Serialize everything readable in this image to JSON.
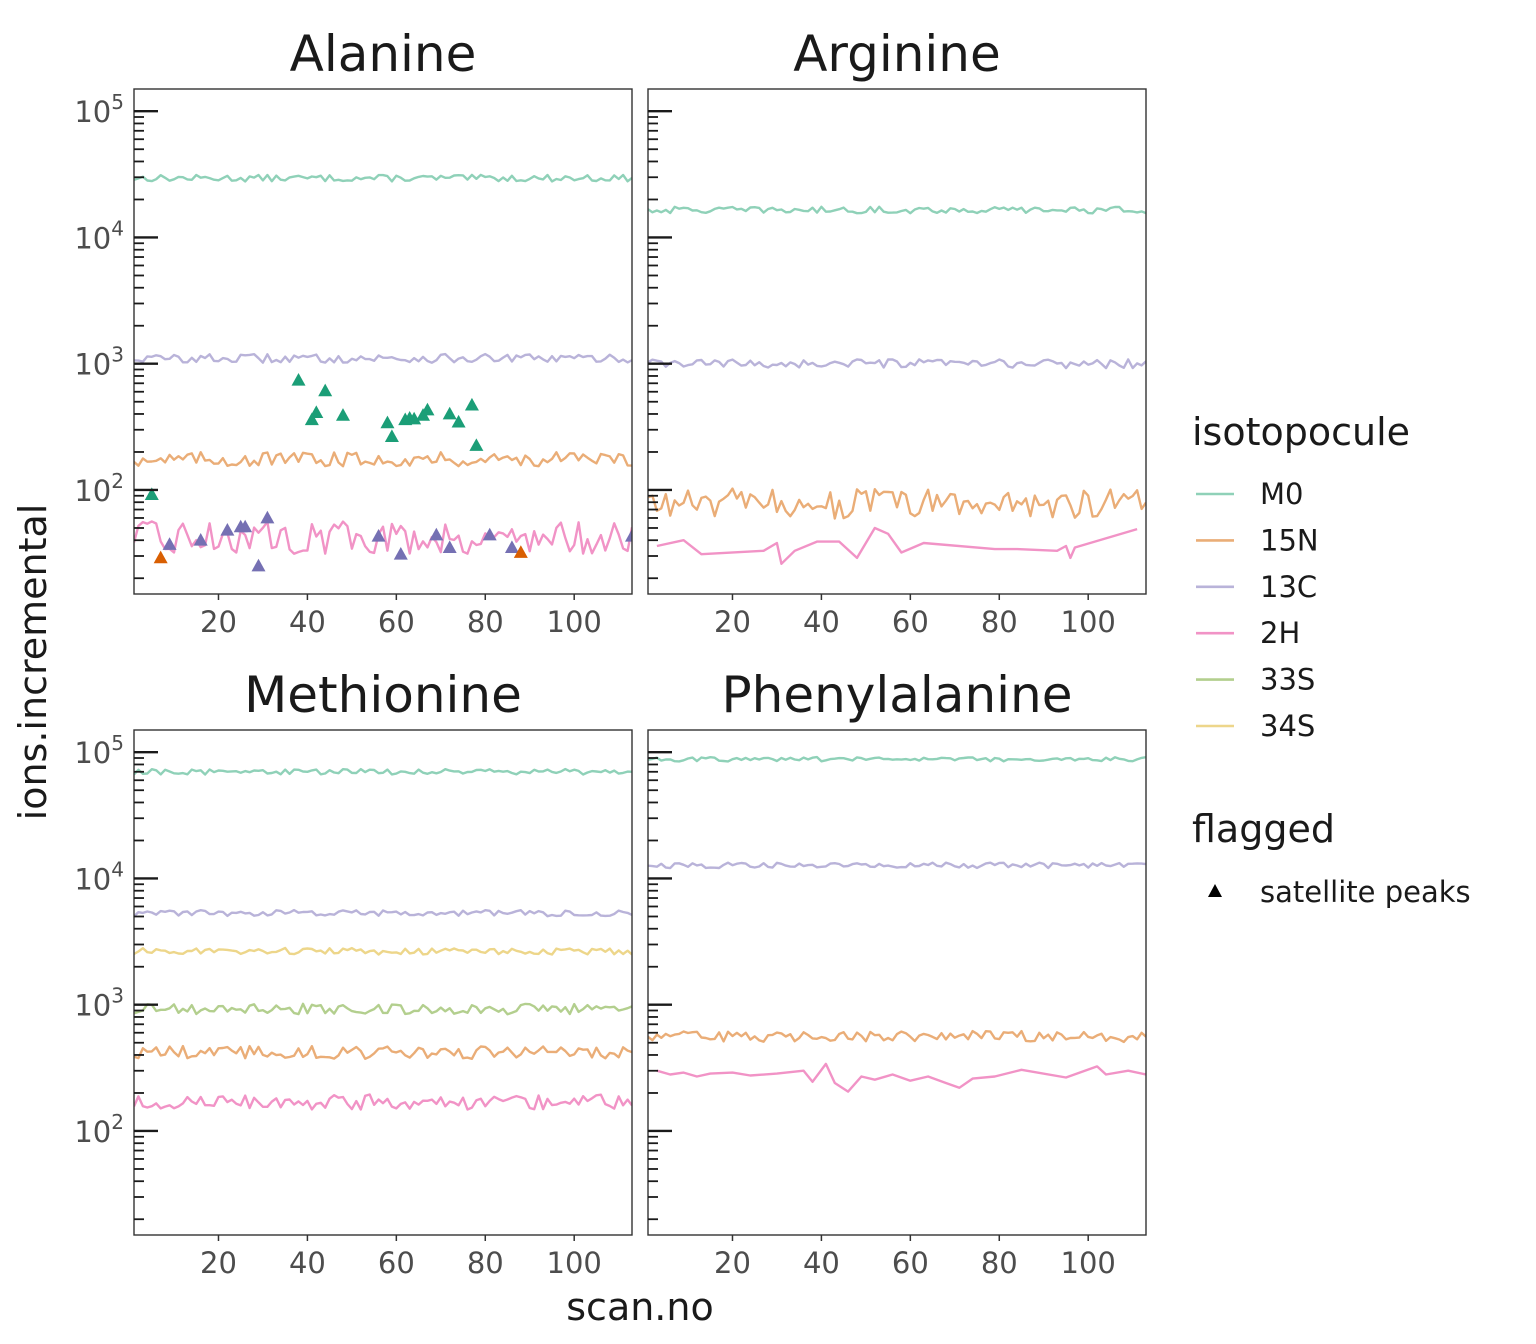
{
  "chart_data": {
    "type": "line",
    "xlabel": "scan.no",
    "ylabel": "ions.incremental",
    "xlim": [
      1,
      113
    ],
    "ylim": [
      15,
      150000
    ],
    "y_scale": "log10",
    "x_ticks": [
      20,
      40,
      60,
      80,
      100
    ],
    "y_ticks": [
      {
        "value": 100,
        "base": "10",
        "exp": "2"
      },
      {
        "value": 1000,
        "base": "10",
        "exp": "3"
      },
      {
        "value": 10000,
        "base": "10",
        "exp": "4"
      },
      {
        "value": 100000,
        "base": "10",
        "exp": "5"
      }
    ],
    "grid": false,
    "colors": {
      "M0": "#8fd1b8",
      "15N": "#eaad77",
      "13C": "#b9b3d9",
      "2H": "#f193c6",
      "33S": "#b3cf8e",
      "34S": "#edd68a"
    },
    "legend": {
      "placement": "right",
      "isotopocule_title": "isotopocule",
      "isotopocule_entries": [
        "M0",
        "15N",
        "13C",
        "2H",
        "33S",
        "34S"
      ],
      "flagged_title": "flagged",
      "flagged_entries": [
        "satellite peaks"
      ]
    },
    "panels": [
      {
        "title": "Alanine",
        "series": [
          {
            "name": "M0",
            "level": 29500,
            "jitter": 0.06
          },
          {
            "name": "13C",
            "level": 1100,
            "jitter": 0.08
          },
          {
            "name": "15N",
            "level": 175,
            "jitter": 0.13
          },
          {
            "name": "2H",
            "level": 42,
            "jitter": 0.3
          }
        ],
        "flagged_points": [
          {
            "color": "#1b9e77",
            "points": [
              [
                5,
                92
              ],
              [
                38,
                740
              ],
              [
                41,
                360
              ],
              [
                42,
                410
              ],
              [
                44,
                610
              ],
              [
                48,
                390
              ],
              [
                58,
                340
              ],
              [
                59,
                265
              ],
              [
                62,
                360
              ],
              [
                63,
                370
              ],
              [
                64,
                365
              ],
              [
                66,
                390
              ],
              [
                67,
                430
              ],
              [
                72,
                400
              ],
              [
                74,
                345
              ],
              [
                77,
                470
              ],
              [
                78,
                225
              ]
            ]
          },
          {
            "color": "#7570b3",
            "points": [
              [
                9,
                37
              ],
              [
                16,
                40
              ],
              [
                22,
                48
              ],
              [
                25,
                51
              ],
              [
                26,
                51
              ],
              [
                29,
                25
              ],
              [
                31,
                60
              ],
              [
                56,
                43
              ],
              [
                61,
                31
              ],
              [
                69,
                44
              ],
              [
                72,
                35
              ],
              [
                81,
                44
              ],
              [
                86,
                35
              ],
              [
                113,
                43
              ]
            ]
          },
          {
            "color": "#d95f02",
            "points": [
              [
                7,
                29
              ],
              [
                88,
                32
              ]
            ]
          }
        ]
      },
      {
        "title": "Arginine",
        "series": [
          {
            "name": "M0",
            "level": 16500,
            "jitter": 0.06
          },
          {
            "name": "13C",
            "level": 1000,
            "jitter": 0.08
          },
          {
            "name": "15N",
            "level": 78,
            "jitter": 0.28
          },
          {
            "name": "2H",
            "points": [
              [
                3,
                36
              ],
              [
                9,
                40
              ],
              [
                13,
                31
              ],
              [
                27,
                33
              ],
              [
                30,
                38
              ],
              [
                31,
                26
              ],
              [
                34,
                33
              ],
              [
                39,
                39
              ],
              [
                44,
                39
              ],
              [
                48,
                29
              ],
              [
                52,
                50
              ],
              [
                55,
                45
              ],
              [
                58,
                32
              ],
              [
                63,
                38
              ],
              [
                79,
                34
              ],
              [
                80,
                34
              ],
              [
                84,
                34
              ],
              [
                93,
                33
              ],
              [
                95,
                36
              ],
              [
                96,
                29
              ],
              [
                97,
                35
              ],
              [
                111,
                49
              ]
            ]
          }
        ]
      },
      {
        "title": "Methionine",
        "series": [
          {
            "name": "M0",
            "level": 70000,
            "jitter": 0.05
          },
          {
            "name": "13C",
            "level": 5300,
            "jitter": 0.06
          },
          {
            "name": "34S",
            "level": 2650,
            "jitter": 0.06
          },
          {
            "name": "33S",
            "level": 920,
            "jitter": 0.1
          },
          {
            "name": "15N",
            "level": 420,
            "jitter": 0.12
          },
          {
            "name": "2H",
            "level": 170,
            "jitter": 0.14
          }
        ]
      },
      {
        "title": "Phenylalanine",
        "series": [
          {
            "name": "M0",
            "level": 88000,
            "jitter": 0.04
          },
          {
            "name": "13C",
            "level": 12700,
            "jitter": 0.05
          },
          {
            "name": "15N",
            "level": 560,
            "jitter": 0.1
          },
          {
            "name": "2H",
            "points": [
              [
                3,
                300
              ],
              [
                6,
                280
              ],
              [
                9,
                290
              ],
              [
                12,
                270
              ],
              [
                15,
                285
              ],
              [
                20,
                290
              ],
              [
                24,
                275
              ],
              [
                30,
                285
              ],
              [
                36,
                300
              ],
              [
                38,
                245
              ],
              [
                41,
                340
              ],
              [
                43,
                240
              ],
              [
                46,
                205
              ],
              [
                49,
                270
              ],
              [
                52,
                255
              ],
              [
                56,
                280
              ],
              [
                60,
                250
              ],
              [
                64,
                270
              ],
              [
                68,
                240
              ],
              [
                71,
                220
              ],
              [
                74,
                260
              ],
              [
                79,
                270
              ],
              [
                85,
                305
              ],
              [
                95,
                265
              ],
              [
                102,
                325
              ],
              [
                104,
                280
              ],
              [
                109,
                300
              ],
              [
                113,
                280
              ]
            ]
          }
        ]
      }
    ]
  }
}
